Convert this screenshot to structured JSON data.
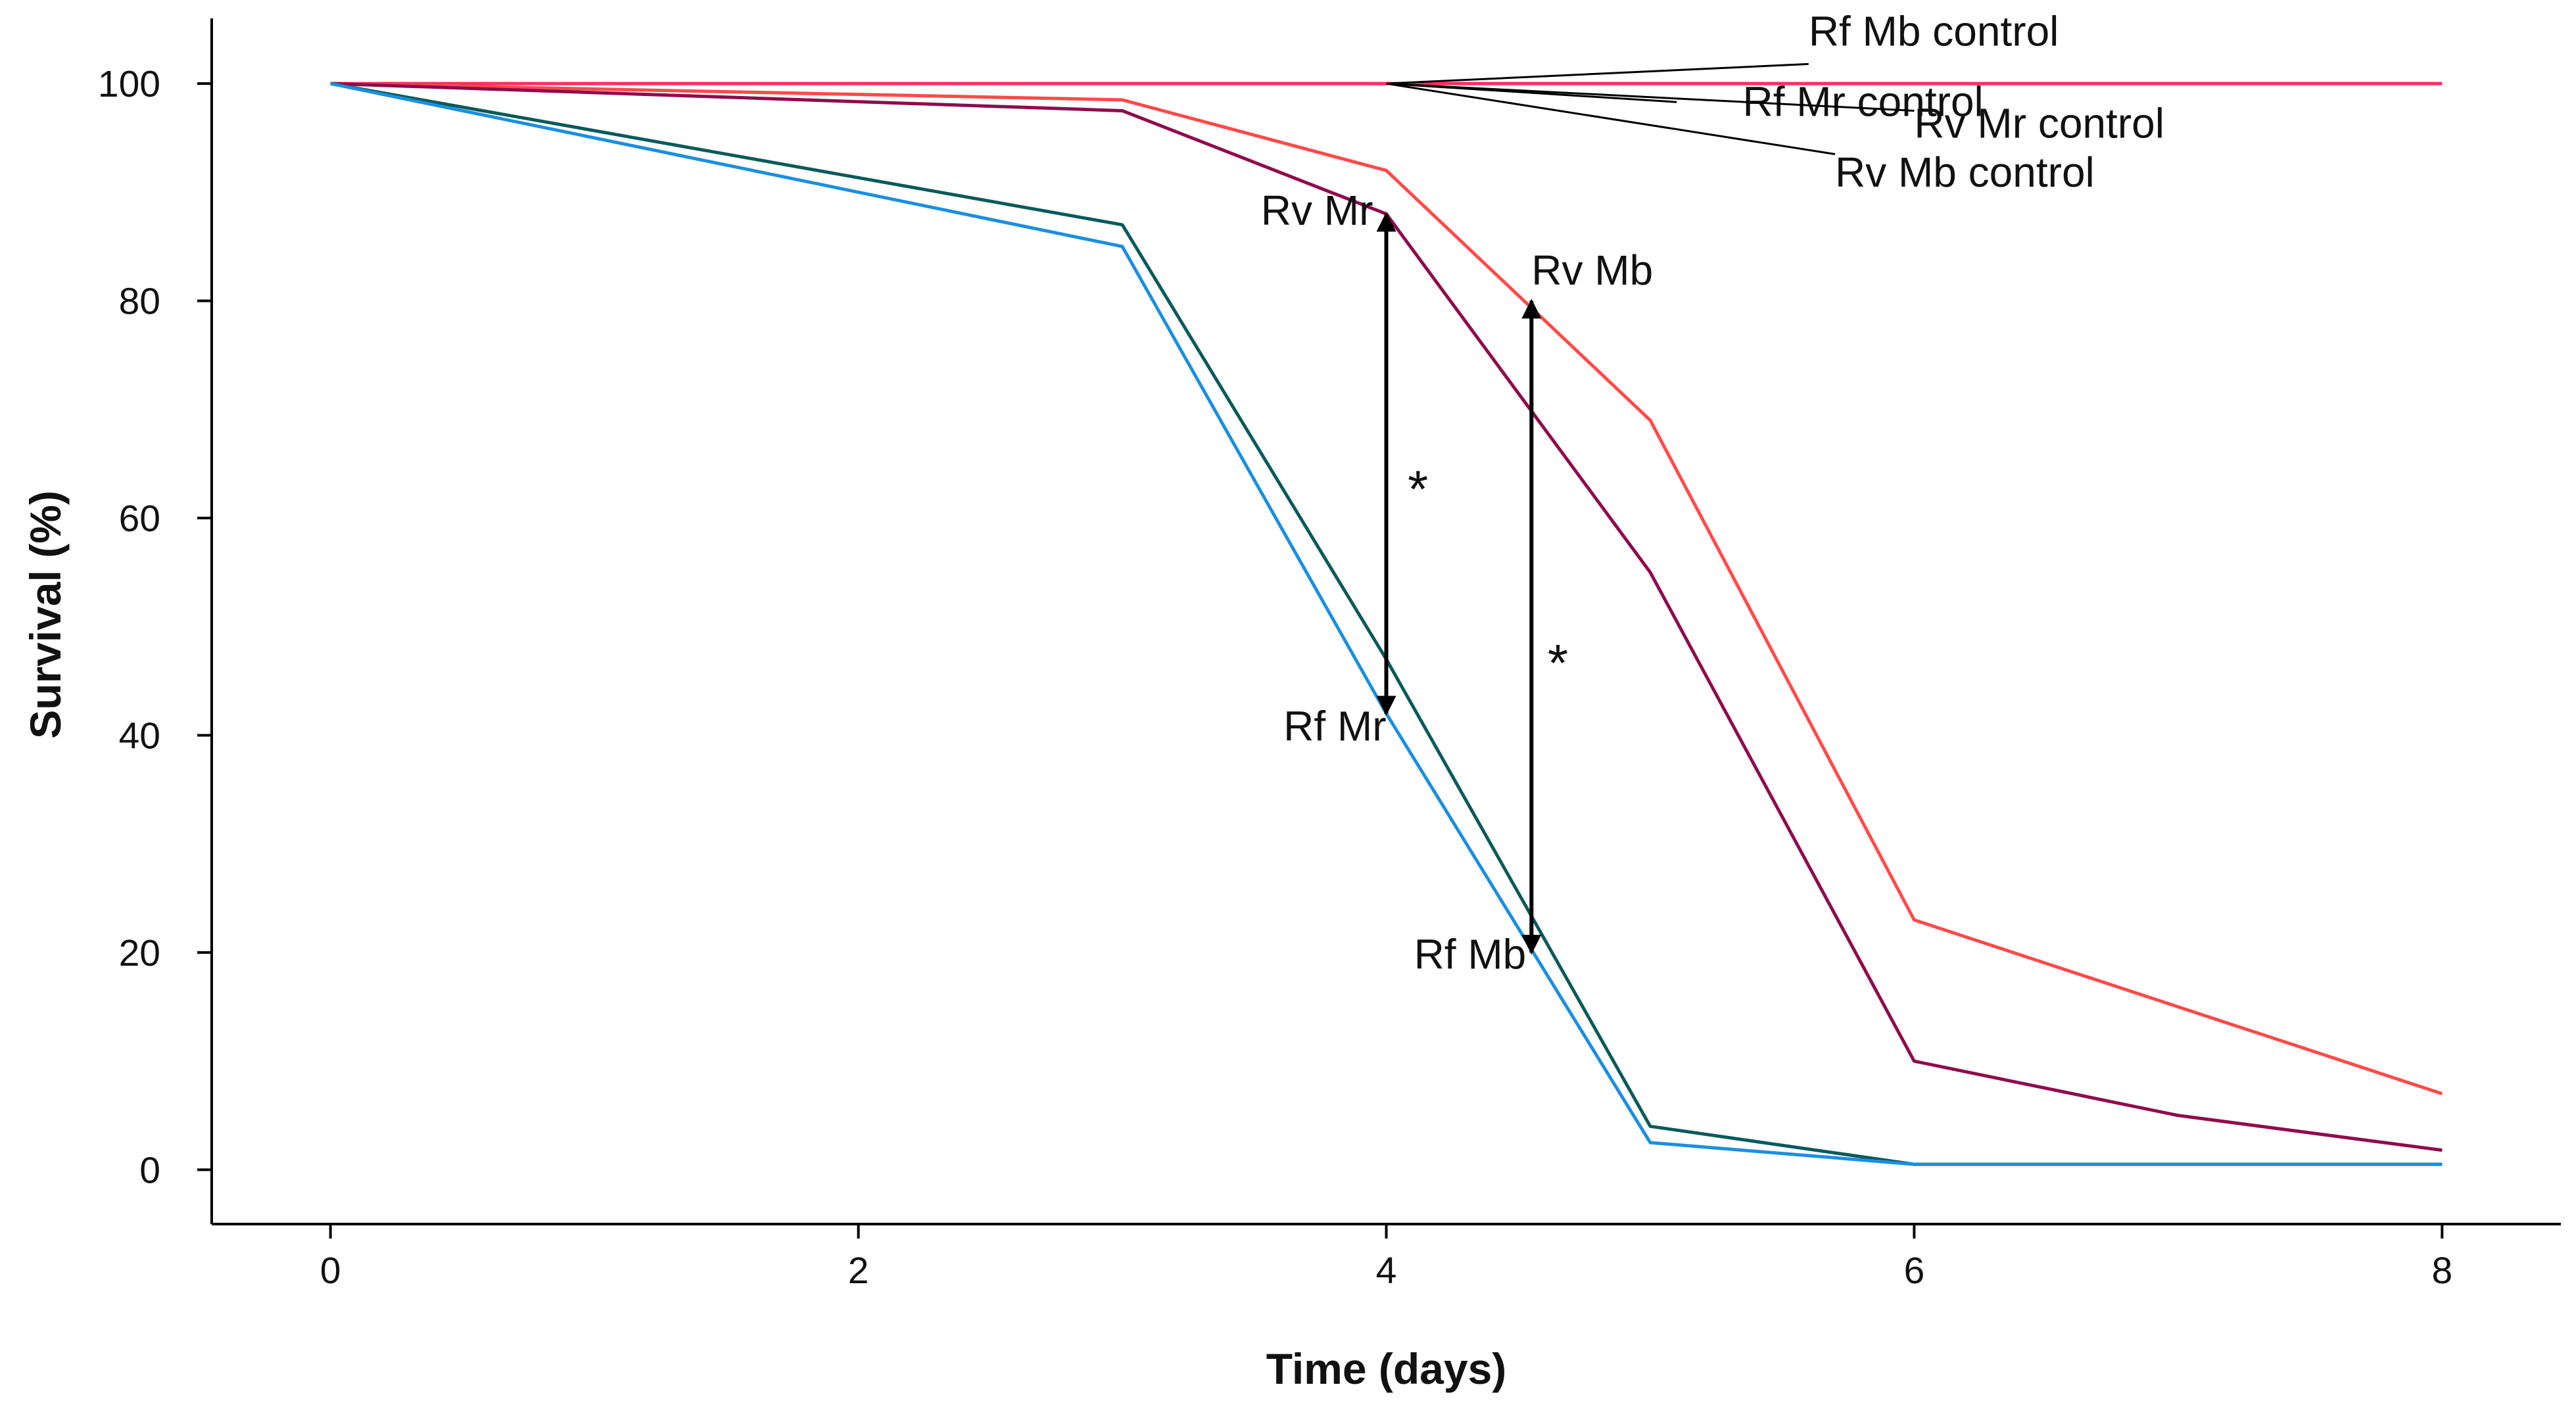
{
  "chart_data": {
    "type": "line",
    "title": "",
    "xlabel": "Time (days)",
    "ylabel": "Survival (%)",
    "xlim": [
      -0.45,
      8.45
    ],
    "ylim": [
      -5,
      106
    ],
    "xticks": [
      0,
      2,
      4,
      6,
      8
    ],
    "yticks": [
      0,
      20,
      40,
      60,
      80,
      100
    ],
    "grid": false,
    "legend": "none",
    "series": [
      {
        "name": "Rf Mb control",
        "color": "#ff2f62",
        "x": [
          0,
          8
        ],
        "y": [
          100,
          100
        ]
      },
      {
        "name": "Rv Mb",
        "color": "#ff4a4a",
        "x": [
          0,
          3,
          4,
          5,
          6,
          8
        ],
        "y": [
          100,
          98.5,
          92,
          69,
          23,
          7
        ]
      },
      {
        "name": "Rv Mr",
        "color": "#8f0b4c",
        "x": [
          0,
          3,
          4,
          5,
          6,
          7,
          8
        ],
        "y": [
          100,
          97.5,
          88,
          55,
          10,
          5,
          1.8
        ]
      },
      {
        "name": "Rf Mr",
        "color": "#0a5a5a",
        "x": [
          0,
          3,
          4,
          5,
          6,
          8
        ],
        "y": [
          100,
          87,
          47,
          4,
          0.5,
          0.5
        ]
      },
      {
        "name": "Rf Mb",
        "color": "#1a8fe0",
        "x": [
          0,
          3,
          4,
          5,
          6,
          8
        ],
        "y": [
          100,
          85,
          42,
          2.5,
          0.5,
          0.5
        ]
      }
    ],
    "annotations": {
      "pointer_origin": {
        "x": 4.0,
        "y": 100
      },
      "control_labels": [
        {
          "text": "Rf Mb control",
          "x": 5.6,
          "y": 103.5,
          "anchor_x": 5.6,
          "anchor_y": 101.8
        },
        {
          "text": "Rf Mr control",
          "x": 5.35,
          "y": 97,
          "anchor_x": 5.1,
          "anchor_y": 98.3
        },
        {
          "text": "Rv Mr control",
          "x": 6.0,
          "y": 95,
          "anchor_x": 6.0,
          "anchor_y": 97.5
        },
        {
          "text": "Rv Mb control",
          "x": 5.7,
          "y": 90.5,
          "anchor_x": 5.7,
          "anchor_y": 93.5
        }
      ],
      "group_labels": [
        {
          "text": "Rv Mr",
          "x": 3.95,
          "y": 87
        },
        {
          "text": "Rf Mr",
          "x": 4.0,
          "y": 39.5
        },
        {
          "text": "Rv Mb",
          "x": 4.55,
          "y": 81.5
        },
        {
          "text": "Rf Mb",
          "x": 4.53,
          "y": 18.5
        }
      ],
      "arrows": [
        {
          "x": 4.0,
          "y_from": 42,
          "y_to": 88
        },
        {
          "x": 4.55,
          "y_from": 20,
          "y_to": 80
        }
      ],
      "significance": [
        {
          "text": "*",
          "x": 4.12,
          "y": 61
        },
        {
          "text": "*",
          "x": 4.65,
          "y": 45
        }
      ]
    }
  }
}
